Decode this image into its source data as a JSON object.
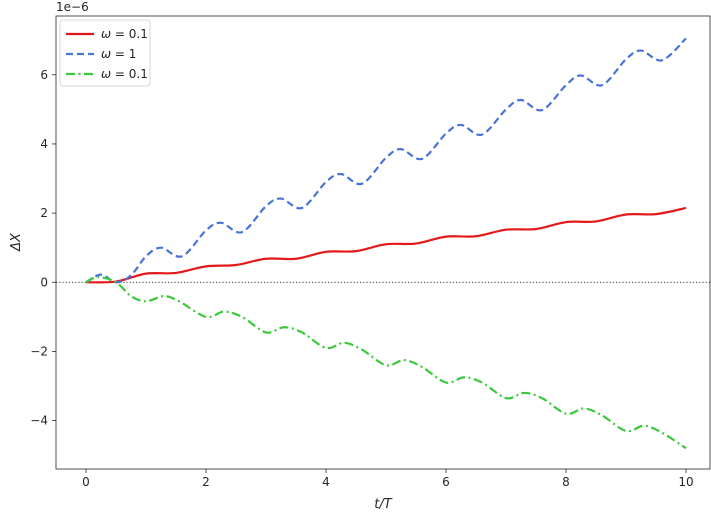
{
  "chart_data": {
    "type": "line",
    "xlabel": "t/T",
    "ylabel": "ΔX",
    "y_offset_text": "1e−6",
    "xlim": [
      -0.5,
      10.4
    ],
    "ylim": [
      -5.4,
      7.7
    ],
    "xticks": [
      0,
      2,
      4,
      6,
      8,
      10
    ],
    "xtick_labels": [
      "0",
      "2",
      "4",
      "6",
      "8",
      "10"
    ],
    "yticks": [
      -4,
      -2,
      0,
      2,
      4,
      6
    ],
    "ytick_labels": [
      "−4",
      "−2",
      "0",
      "2",
      "4",
      "6"
    ],
    "grid": false,
    "legend_position": "top-left",
    "reference_line": {
      "y": 0,
      "style": "dotted",
      "color": "#000000"
    },
    "series": [
      {
        "name": "ω = 0.1",
        "legend_symbol": "ω",
        "legend_value": "= 0.1",
        "color": "#e31a1c",
        "style": "solid",
        "x": [
          0,
          0.5,
          1.0,
          1.5,
          2.0,
          2.5,
          3.0,
          3.5,
          4.0,
          4.5,
          5.0,
          5.5,
          6.0,
          6.5,
          7.0,
          7.5,
          8.0,
          8.5,
          9.0,
          9.5,
          10.0
        ],
        "values": [
          0,
          0.02,
          0.25,
          0.27,
          0.46,
          0.5,
          0.68,
          0.68,
          0.88,
          0.9,
          1.1,
          1.12,
          1.32,
          1.33,
          1.52,
          1.54,
          1.74,
          1.76,
          1.96,
          1.97,
          2.15
        ]
      },
      {
        "name": "ω = 1",
        "legend_symbol": "ω",
        "legend_value": "= 1",
        "color": "#4b72d8",
        "style": "dashed",
        "x": [
          0,
          0.25,
          0.5,
          0.75,
          1.0,
          1.25,
          1.6,
          2.0,
          2.25,
          2.6,
          3.0,
          3.25,
          3.6,
          4.0,
          4.25,
          4.6,
          5.0,
          5.25,
          5.6,
          6.0,
          6.25,
          6.6,
          7.0,
          7.25,
          7.6,
          8.0,
          8.25,
          8.6,
          9.0,
          9.25,
          9.6,
          10.0
        ],
        "values": [
          0,
          0.22,
          0.0,
          0.2,
          0.75,
          1.0,
          0.75,
          1.5,
          1.72,
          1.45,
          2.2,
          2.42,
          2.15,
          2.9,
          3.13,
          2.85,
          3.6,
          3.85,
          3.57,
          4.3,
          4.55,
          4.27,
          5.0,
          5.27,
          4.98,
          5.7,
          5.98,
          5.7,
          6.45,
          6.7,
          6.42,
          7.05
        ]
      },
      {
        "name": "ω = 0.1",
        "legend_symbol": "ω",
        "legend_value": "= 0.1",
        "color": "#3cc83c",
        "style": "dashdot",
        "x": [
          0,
          0.2,
          0.5,
          0.75,
          1.0,
          1.3,
          1.55,
          2.0,
          2.3,
          2.6,
          3.0,
          3.3,
          3.6,
          4.0,
          4.3,
          4.6,
          5.0,
          5.3,
          5.6,
          6.0,
          6.3,
          6.6,
          7.0,
          7.3,
          7.6,
          8.0,
          8.3,
          8.6,
          9.0,
          9.3,
          9.6,
          10.0
        ],
        "values": [
          0,
          0.15,
          0.0,
          -0.4,
          -0.55,
          -0.4,
          -0.55,
          -1.0,
          -0.85,
          -1.0,
          -1.45,
          -1.3,
          -1.45,
          -1.9,
          -1.75,
          -1.95,
          -2.4,
          -2.25,
          -2.45,
          -2.9,
          -2.75,
          -2.9,
          -3.35,
          -3.2,
          -3.35,
          -3.8,
          -3.65,
          -3.85,
          -4.3,
          -4.15,
          -4.35,
          -4.8
        ]
      }
    ]
  }
}
